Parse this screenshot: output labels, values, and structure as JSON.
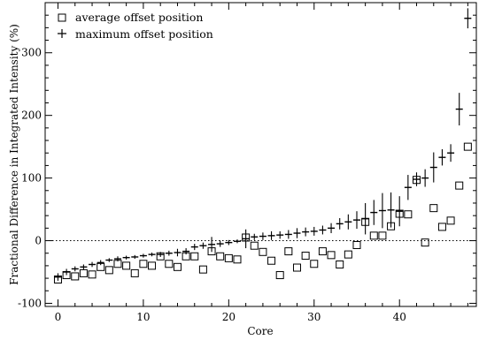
{
  "chart_data": {
    "type": "scatter",
    "title": "",
    "xlabel": "Core",
    "ylabel": "Fractional Difference in Integrated Intensity (%)",
    "xlim": [
      -1.5,
      49
    ],
    "ylim": [
      -105,
      380
    ],
    "xticks": [
      0,
      10,
      20,
      30,
      40
    ],
    "yticks": [
      -100,
      0,
      100,
      200,
      300
    ],
    "x_tick_labels": [
      "0",
      "10",
      "20",
      "30",
      "40"
    ],
    "y_tick_labels": [
      "-100",
      "0",
      "100",
      "200",
      "300"
    ],
    "reference_line": {
      "y": 0,
      "style": "dotted"
    },
    "legend_position": "top-left",
    "grid": false,
    "series": [
      {
        "name": "average offset position",
        "marker": "open-square",
        "x": [
          0,
          1,
          2,
          3,
          4,
          5,
          6,
          7,
          8,
          9,
          10,
          11,
          12,
          13,
          14,
          15,
          16,
          17,
          18,
          19,
          20,
          21,
          22,
          23,
          24,
          25,
          26,
          27,
          28,
          29,
          30,
          31,
          32,
          33,
          34,
          35,
          36,
          37,
          38,
          39,
          40,
          41,
          42,
          43,
          44,
          45,
          46,
          47,
          48
        ],
        "values": [
          -62,
          -55,
          -57,
          -52,
          -54,
          -42,
          -47,
          -37,
          -40,
          -52,
          -37,
          -40,
          -25,
          -37,
          -42,
          -25,
          -25,
          -46,
          -17,
          -25,
          -28,
          -30,
          5,
          -8,
          -18,
          -32,
          -55,
          -17,
          -43,
          -24,
          -37,
          -17,
          -23,
          -38,
          -22,
          -7,
          30,
          8,
          8,
          23,
          43,
          42,
          97,
          -3,
          52,
          22,
          32,
          88,
          150
        ]
      },
      {
        "name": "maximum offset position",
        "marker": "plus",
        "x": [
          0,
          1,
          2,
          3,
          4,
          5,
          6,
          7,
          8,
          9,
          10,
          11,
          12,
          13,
          14,
          15,
          16,
          17,
          18,
          19,
          20,
          21,
          22,
          23,
          24,
          25,
          26,
          27,
          28,
          29,
          30,
          31,
          32,
          33,
          34,
          35,
          36,
          37,
          38,
          39,
          40,
          41,
          42,
          43,
          44,
          45,
          46,
          47,
          48
        ],
        "values": [
          -58,
          -50,
          -45,
          -42,
          -38,
          -35,
          -31,
          -29,
          -27,
          -26,
          -24,
          -22,
          -22,
          -20,
          -19,
          -17,
          -10,
          -8,
          -6,
          -5,
          -3,
          -1,
          3,
          6,
          7,
          8,
          9,
          10,
          12,
          14,
          15,
          17,
          20,
          27,
          30,
          33,
          35,
          45,
          48,
          49,
          47,
          85,
          98,
          100,
          117,
          133,
          140,
          210,
          355
        ],
        "errors": [
          6,
          5,
          4,
          4,
          4,
          4,
          3,
          4,
          3,
          3,
          3,
          3,
          4,
          4,
          6,
          5,
          5,
          5,
          12,
          5,
          4,
          3,
          15,
          5,
          6,
          7,
          6,
          7,
          8,
          7,
          7,
          7,
          8,
          9,
          12,
          14,
          25,
          20,
          28,
          28,
          24,
          20,
          11,
          14,
          24,
          13,
          14,
          26,
          16
        ]
      }
    ]
  }
}
